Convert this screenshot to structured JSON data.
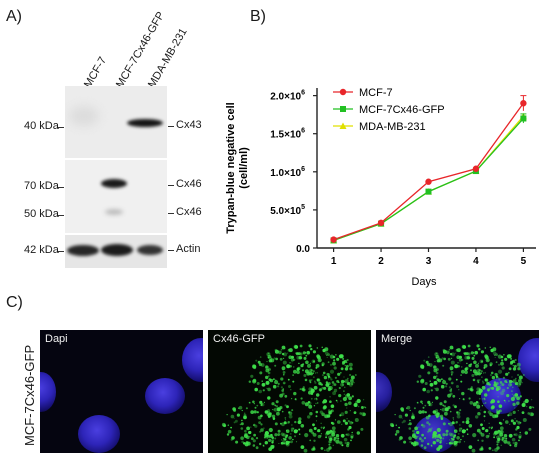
{
  "panelA": {
    "letter": "A)",
    "lanes": [
      "MCF-7",
      "MCF-7Cx46-GFP",
      "MDA-MB-231"
    ],
    "ladder": [
      "40 kDa",
      "70 kDa",
      "50 kDa",
      "42 kDa"
    ],
    "proteins": [
      "Cx43",
      "Cx46",
      "Cx46",
      "Actin"
    ]
  },
  "panelB": {
    "letter": "B)"
  },
  "panelC": {
    "letter": "C)",
    "row_label": "MCF-7Cx46-GFP",
    "images": [
      "Dapi",
      "Cx46-GFP",
      "Merge"
    ]
  },
  "colors": {
    "mcf7": "#e8262a",
    "mcf7cx46": "#22c022",
    "mda": "#e0e000"
  },
  "chart_data": {
    "type": "line",
    "x": [
      1,
      2,
      3,
      4,
      5
    ],
    "xlabel": "Days",
    "ylabel": "Trypan-blue negative cell (cell/ml)",
    "ylabel_lines": [
      "Trypan-blue negative cell",
      "(cell/ml)"
    ],
    "ylim": [
      0,
      2100000
    ],
    "yticks": [
      0,
      500000,
      1000000,
      1500000,
      2000000
    ],
    "ytick_labels": [
      {
        "mant": "0.0",
        "exp": ""
      },
      {
        "mant": "5.0×10",
        "exp": "5"
      },
      {
        "mant": "1.0×10",
        "exp": "6"
      },
      {
        "mant": "1.5×10",
        "exp": "6"
      },
      {
        "mant": "2.0×10",
        "exp": "6"
      }
    ],
    "legend_position": "top-left",
    "series": [
      {
        "name": "MCF-7",
        "values": [
          110000,
          330000,
          870000,
          1040000,
          1900000
        ],
        "err": [
          0,
          0,
          0,
          0,
          100000
        ],
        "marker": "circle"
      },
      {
        "name": "MCF-7Cx46-GFP",
        "values": [
          100000,
          320000,
          740000,
          1010000,
          1700000
        ],
        "err": [
          0,
          0,
          0,
          0,
          60000
        ],
        "marker": "square"
      },
      {
        "name": "MDA-MB-231",
        "values": [
          100000,
          320000,
          740000,
          1010000,
          1730000
        ],
        "err": [
          0,
          0,
          0,
          0,
          0
        ],
        "marker": "triangle"
      }
    ]
  }
}
